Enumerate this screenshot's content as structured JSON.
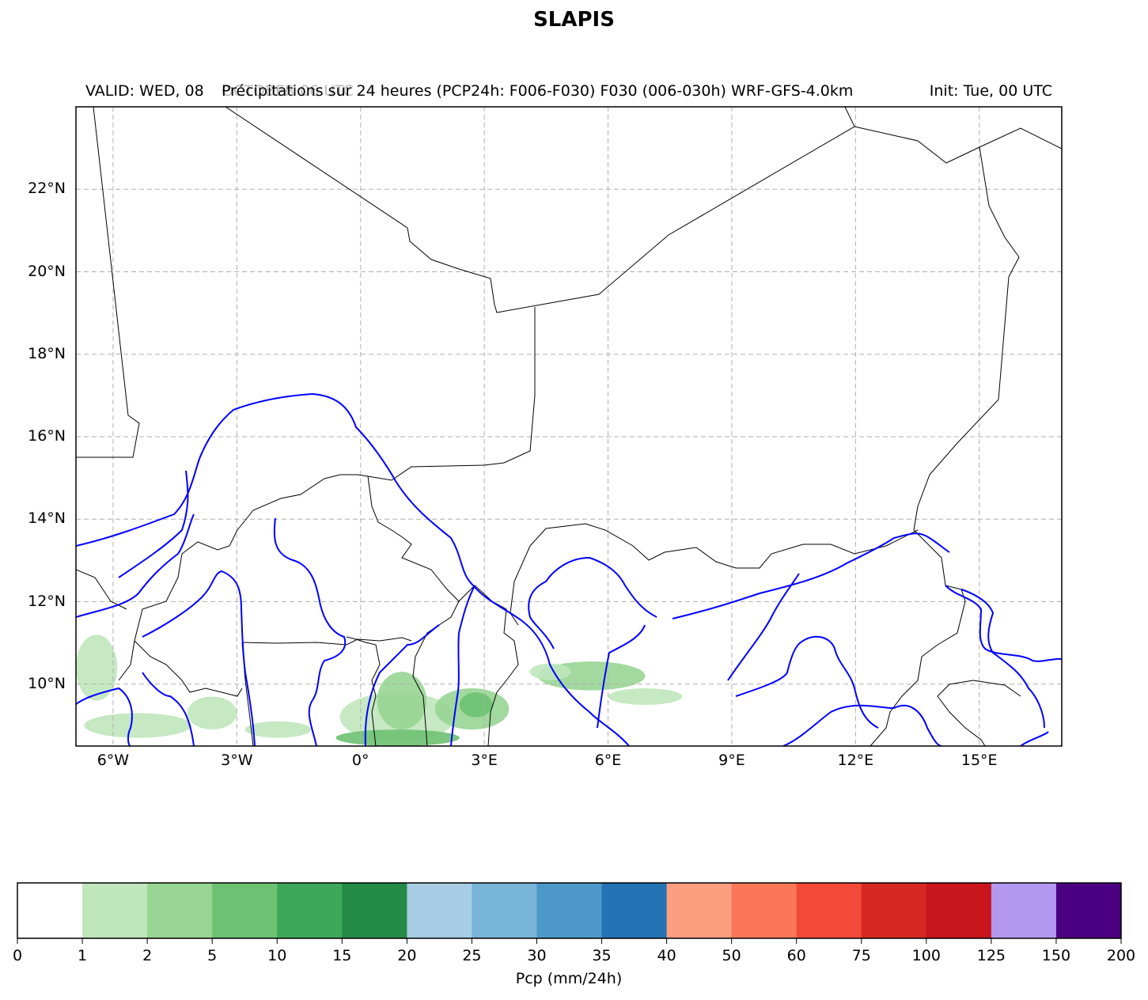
{
  "title": "SLAPIS",
  "header": {
    "left": "VALID: WED, 08",
    "center": "Précipitations sur 24 heures (PCP24h: F006-F030) F030 (006-030h) WRF-GFS-4.0km",
    "right": "Init: Tue, 00 UTC",
    "faded_overlap": "OCTOBER 06 UTC"
  },
  "map": {
    "extent": {
      "lon_min": -6.9,
      "lon_max": 17.0,
      "lat_min": 8.5,
      "lat_max": 24.0
    },
    "lat_ticks": [
      {
        "value": 22,
        "label": "22°N"
      },
      {
        "value": 20,
        "label": "20°N"
      },
      {
        "value": 18,
        "label": "18°N"
      },
      {
        "value": 16,
        "label": "16°N"
      },
      {
        "value": 14,
        "label": "14°N"
      },
      {
        "value": 12,
        "label": "12°N"
      },
      {
        "value": 10,
        "label": "10°N"
      }
    ],
    "lon_ticks": [
      {
        "value": -6,
        "label": "6°W"
      },
      {
        "value": -3,
        "label": "3°W"
      },
      {
        "value": 0,
        "label": "0°"
      },
      {
        "value": 3,
        "label": "3°E"
      },
      {
        "value": 6,
        "label": "6°E"
      },
      {
        "value": 9,
        "label": "9°E"
      },
      {
        "value": 12,
        "label": "12°E"
      },
      {
        "value": 15,
        "label": "15°E"
      }
    ],
    "gridlines": true,
    "border_color": "#000000",
    "river_color": "#0000ff",
    "precip_areas": [
      {
        "lon": 0.9,
        "lat": 9.2,
        "rx": 1.4,
        "ry": 0.6,
        "class": "1-2"
      },
      {
        "lon": 2.7,
        "lat": 9.4,
        "rx": 0.9,
        "ry": 0.5,
        "class": "2-5"
      },
      {
        "lon": 1.0,
        "lat": 9.6,
        "rx": 0.6,
        "ry": 0.7,
        "class": "2-5"
      },
      {
        "lon": 5.6,
        "lat": 10.2,
        "rx": 1.3,
        "ry": 0.35,
        "class": "2-5"
      },
      {
        "lon": 6.9,
        "lat": 9.7,
        "rx": 0.9,
        "ry": 0.2,
        "class": "1-2"
      },
      {
        "lon": -5.4,
        "lat": 9.0,
        "rx": 1.3,
        "ry": 0.3,
        "class": "1-2"
      },
      {
        "lon": -6.4,
        "lat": 10.4,
        "rx": 0.5,
        "ry": 0.8,
        "class": "1-2"
      },
      {
        "lon": -2.0,
        "lat": 8.9,
        "rx": 0.8,
        "ry": 0.2,
        "class": "1-2"
      },
      {
        "lon": -3.6,
        "lat": 9.3,
        "rx": 0.6,
        "ry": 0.4,
        "class": "1-2"
      },
      {
        "lon": 0.9,
        "lat": 8.7,
        "rx": 1.5,
        "ry": 0.2,
        "class": "5-10"
      },
      {
        "lon": 2.8,
        "lat": 9.5,
        "rx": 0.4,
        "ry": 0.3,
        "class": "5-10"
      },
      {
        "lon": 4.6,
        "lat": 10.3,
        "rx": 0.5,
        "ry": 0.2,
        "class": "1-2"
      }
    ]
  },
  "colorbar": {
    "label": "Pcp (mm/24h)",
    "boundaries": [
      "0",
      "1",
      "2",
      "5",
      "10",
      "15",
      "20",
      "25",
      "30",
      "35",
      "40",
      "50",
      "60",
      "75",
      "100",
      "125",
      "150",
      "200"
    ],
    "colors": [
      "#ffffff",
      "#c0e6bb",
      "#98d594",
      "#6dc172",
      "#3ea85a",
      "#238b45",
      "#a6cde4",
      "#78b3d8",
      "#4c98c9",
      "#2473b5",
      "#fc9e80",
      "#fc7757",
      "#f24a36",
      "#d72723",
      "#c8161c",
      "#b299ef",
      "#4a0080"
    ]
  }
}
